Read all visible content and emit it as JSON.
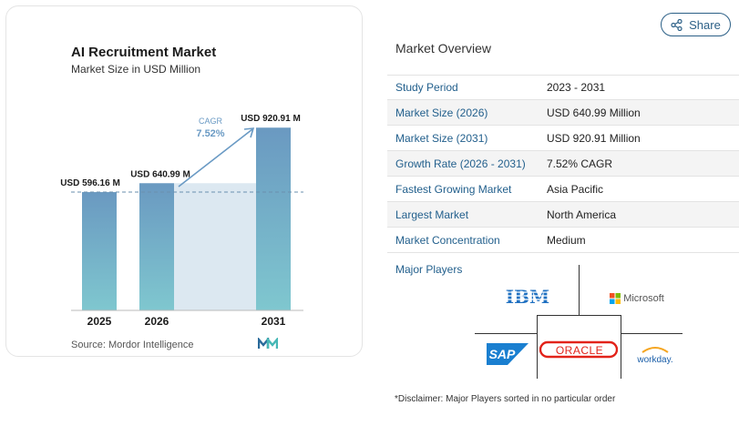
{
  "chart": {
    "title": "AI Recruitment Market",
    "subtitle": "Market Size in USD Million",
    "source": "Source: Mordor Intelligence",
    "cagr_label": "CAGR",
    "cagr_value": "7.52%",
    "colors": {
      "bar_top": "#6a99c1",
      "bar_bottom": "#7fc7cf",
      "fill": "#dce8f1",
      "arrow": "#6a9ac4"
    }
  },
  "chart_data": {
    "type": "bar",
    "categories": [
      "2025",
      "2026",
      "2031"
    ],
    "values": [
      596.16,
      640.99,
      920.91
    ],
    "data_labels": [
      "USD 596.16 M",
      "USD 640.99 M",
      "USD 920.91 M"
    ],
    "title": "AI Recruitment Market",
    "subtitle": "Market Size in USD Million",
    "annotation": "CAGR 7.52%"
  },
  "share": {
    "label": "Share",
    "icon": "share-icon"
  },
  "overview": {
    "title": "Market Overview",
    "rows": [
      {
        "label": "Study Period",
        "value": "2023 - 2031"
      },
      {
        "label": "Market Size (2026)",
        "value": "USD 640.99 Million"
      },
      {
        "label": "Market Size (2031)",
        "value": "USD 920.91 Million"
      },
      {
        "label": "Growth Rate (2026 - 2031)",
        "value": "7.52% CAGR"
      },
      {
        "label": "Fastest Growing Market",
        "value": "Asia Pacific"
      },
      {
        "label": "Largest Market",
        "value": "North America"
      },
      {
        "label": "Market Concentration",
        "value": "Medium"
      }
    ]
  },
  "players": {
    "title": "Major Players",
    "logos": [
      "IBM",
      "Microsoft",
      "SAP",
      "ORACLE",
      "workday."
    ]
  },
  "disclaimer": "*Disclaimer: Major Players sorted in no particular order"
}
